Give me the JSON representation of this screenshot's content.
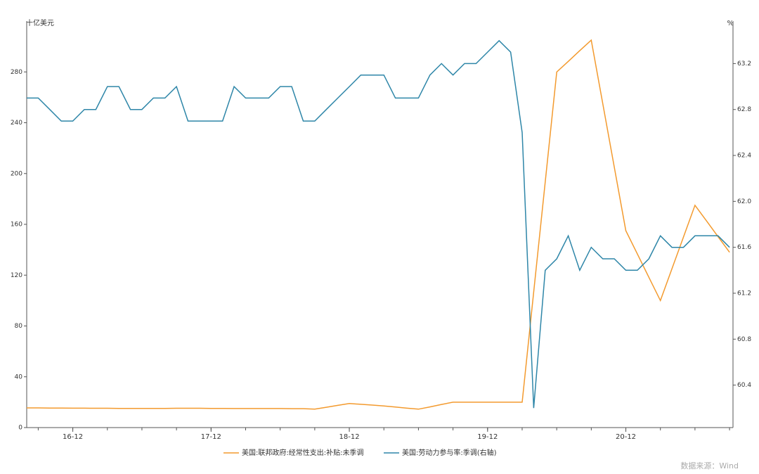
{
  "chart_data": {
    "type": "line",
    "y_axis_label": "十亿美元",
    "y2_axis_label": "%",
    "source": "数据来源：Wind",
    "categories": [
      null,
      null,
      null,
      null,
      "16-12",
      null,
      null,
      null,
      null,
      null,
      null,
      null,
      null,
      null,
      null,
      null,
      "17-12",
      null,
      null,
      null,
      null,
      null,
      null,
      null,
      null,
      null,
      null,
      null,
      "18-12",
      null,
      null,
      null,
      null,
      null,
      null,
      null,
      null,
      null,
      null,
      null,
      "19-12",
      null,
      null,
      null,
      null,
      null,
      null,
      null,
      null,
      null,
      null,
      null,
      "20-12",
      null,
      null,
      null,
      null,
      null,
      null,
      null,
      null,
      null
    ],
    "series": [
      {
        "name": "美国:联邦政府:经常性支出:补贴:未季调",
        "color": "#f39a2e",
        "axis": "y",
        "values": [
          15.5,
          15.5,
          15.4,
          15.4,
          15.3,
          15.3,
          15.2,
          15.2,
          15.1,
          15.1,
          15.1,
          15.1,
          15.1,
          15.2,
          15.2,
          15.2,
          15.1,
          15.1,
          15.0,
          15.0,
          15.0,
          15.0,
          15.0,
          14.9,
          14.9,
          14.5,
          16,
          17.5,
          19,
          18.3,
          17.7,
          17,
          16.2,
          15.3,
          14.5,
          16.3,
          18.2,
          20,
          20,
          20,
          20,
          20,
          20,
          20,
          106.7,
          193.3,
          280,
          288.3,
          296.7,
          305,
          255,
          205,
          155,
          136.7,
          118.3,
          100,
          125,
          150,
          175,
          162.7,
          150.3,
          138
        ]
      },
      {
        "name": "美国:劳动力参与率:季调(右轴)",
        "color": "#2e86a8",
        "axis": "y2",
        "values": [
          62.9,
          62.9,
          62.8,
          62.7,
          62.7,
          62.8,
          62.8,
          63.0,
          63.0,
          62.8,
          62.8,
          62.9,
          62.9,
          63.0,
          62.7,
          62.7,
          62.7,
          62.7,
          63.0,
          62.9,
          62.9,
          62.9,
          63.0,
          63.0,
          62.7,
          62.7,
          62.8,
          62.9,
          63.0,
          63.1,
          63.1,
          63.1,
          62.9,
          62.9,
          62.9,
          63.1,
          63.2,
          63.1,
          63.2,
          63.2,
          63.3,
          63.4,
          63.3,
          62.6,
          60.2,
          61.4,
          61.5,
          61.7,
          61.4,
          61.6,
          61.5,
          61.5,
          61.4,
          61.4,
          61.5,
          61.7,
          61.6,
          61.6,
          61.7,
          61.7,
          61.7,
          61.6
        ]
      }
    ],
    "ylim": [
      0,
      320
    ],
    "yticks": [
      0,
      40,
      80,
      120,
      160,
      200,
      240,
      280
    ],
    "y2lim": [
      60.03,
      63.57
    ],
    "y2ticks": [
      60.4,
      60.8,
      61.2,
      61.6,
      {
        "value": 62,
        "label": "62.0"
      },
      62.4,
      62.8,
      63.2
    ],
    "legend": "bottom"
  }
}
